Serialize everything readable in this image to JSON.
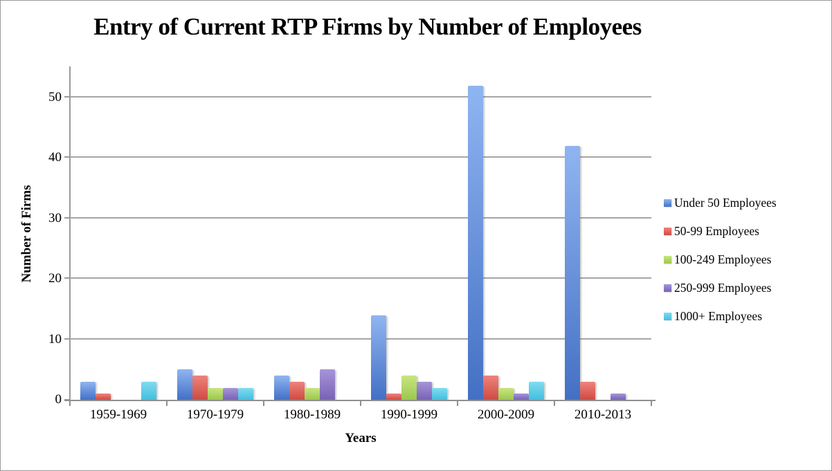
{
  "title": "Entry of Current RTP Firms by Number of Employees",
  "chart_data": {
    "type": "bar",
    "title": "Entry of Current RTP Firms by Number of Employees",
    "xlabel": "Years",
    "ylabel": "Number of Firms",
    "categories": [
      "1959-1969",
      "1970-1979",
      "1980-1989",
      "1990-1999",
      "2000-2009",
      "2010-2013"
    ],
    "series": [
      {
        "name": "Under 50 Employees",
        "color_top": "#8FB5F1",
        "color_bottom": "#4470C4",
        "values": [
          3,
          5,
          4,
          14,
          52,
          42
        ]
      },
      {
        "name": "50-99 Employees",
        "color_top": "#F0837B",
        "color_bottom": "#CC4B44",
        "values": [
          1,
          4,
          3,
          1,
          4,
          3
        ]
      },
      {
        "name": "100-249 Employees",
        "color_top": "#C9E581",
        "color_bottom": "#9CC74F",
        "values": [
          0,
          2,
          2,
          4,
          2,
          0
        ]
      },
      {
        "name": "250-999 Employees",
        "color_top": "#A795D9",
        "color_bottom": "#7763B4",
        "values": [
          0,
          2,
          5,
          3,
          1,
          1
        ]
      },
      {
        "name": "1000+ Employees",
        "color_top": "#7FDCF0",
        "color_bottom": "#45BEDD",
        "values": [
          3,
          2,
          0,
          2,
          3,
          0
        ]
      }
    ],
    "y_ticks": [
      0,
      10,
      20,
      30,
      40,
      50
    ],
    "ylim": [
      0,
      55.1
    ],
    "grid": true,
    "legend_position": "right"
  },
  "colors": {
    "gridline": "#a6a6a6",
    "axis": "#8f8f8f",
    "text": "#000000",
    "background": "#ffffff"
  }
}
